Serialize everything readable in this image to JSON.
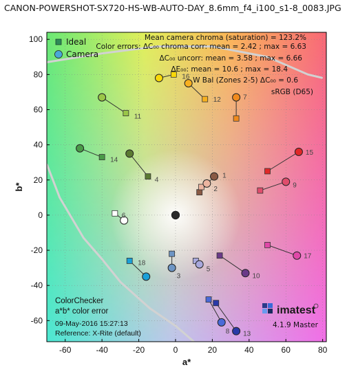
{
  "file_title": "CANON-POWERSHOT-SX720-HS-WB-AUTO-DAY_8.6mm_f4_i100_s1-8_0083.JPG",
  "annotations": {
    "line1": "Mean camera chroma (saturation) = 123.2%",
    "line2": "Color errors:  ΔC₀₀ chroma corr: mean = 2.42 ; max = 6.63",
    "line3": "ΔC₀₀ uncorr: mean = 3.58 ; max = 6.66",
    "line4": "ΔE₀₀: mean = 10.6 ; max = 18.4",
    "line5": "W Bal (Zones 2-5)  ΔC₀₀ = 0.6",
    "line6": "sRGB (D65)"
  },
  "info_box": {
    "line1": "ColorChecker",
    "line2": "a*b* color error",
    "line3": "09-May-2016 15:27:13",
    "line4": "Reference: X-Rite (default)"
  },
  "logo": {
    "text": "imatest",
    "version": "4.1.9 Master"
  },
  "colors": {
    "gamut_line": "#d2d2d2",
    "ideal_legend": "#2e8b57",
    "camera_legend": "#4aa8d8"
  },
  "chart_data": {
    "type": "scatter",
    "xlabel": "a*",
    "ylabel": "b*",
    "xlim": [
      -70,
      82
    ],
    "ylim": [
      -72,
      104
    ],
    "xticks": [
      -60,
      -40,
      -20,
      0,
      20,
      40,
      60,
      80
    ],
    "yticks": [
      -60,
      -40,
      -20,
      0,
      20,
      40,
      60,
      80,
      100
    ],
    "grid": true,
    "legend_position": "top-left",
    "series": [
      {
        "name": "Ideal",
        "marker": "square"
      },
      {
        "name": "Camera",
        "marker": "circle"
      }
    ],
    "patches": [
      {
        "id": "1",
        "ideal": [
          13,
          13
        ],
        "camera": [
          21,
          22
        ],
        "color": "#8a5a44"
      },
      {
        "id": "2",
        "ideal": [
          14,
          16
        ],
        "camera": [
          17,
          18
        ],
        "color": "#ecb5a0"
      },
      {
        "id": "3",
        "ideal": [
          -2,
          -22
        ],
        "camera": [
          -2,
          -30
        ],
        "color": "#6d95c4"
      },
      {
        "id": "4",
        "ideal": [
          -15,
          22
        ],
        "camera": [
          -25,
          35
        ],
        "color": "#5b7a32"
      },
      {
        "id": "5",
        "ideal": [
          11,
          -26
        ],
        "camera": [
          13,
          -28
        ],
        "color": "#a8a8dc"
      },
      {
        "id": "6",
        "ideal": [
          -33,
          1
        ],
        "camera": [
          -28,
          -3
        ],
        "color": "#ffffff"
      },
      {
        "id": "7",
        "ideal": [
          33,
          55
        ],
        "camera": [
          33,
          67
        ],
        "color": "#f08a1e"
      },
      {
        "id": "8",
        "ideal": [
          18,
          -48
        ],
        "camera": [
          25,
          -61
        ],
        "color": "#4a6ad8"
      },
      {
        "id": "9",
        "ideal": [
          46,
          14
        ],
        "camera": [
          60,
          19
        ],
        "color": "#e04d6c"
      },
      {
        "id": "10",
        "ideal": [
          24,
          -23
        ],
        "camera": [
          38,
          -33
        ],
        "color": "#6a3a88"
      },
      {
        "id": "11",
        "ideal": [
          -27,
          58
        ],
        "camera": [
          -40,
          67
        ],
        "color": "#9ac648"
      },
      {
        "id": "12",
        "ideal": [
          16,
          66
        ],
        "camera": [
          7,
          75
        ],
        "color": "#f7b020"
      },
      {
        "id": "13",
        "ideal": [
          22,
          -50
        ],
        "camera": [
          33,
          -66
        ],
        "color": "#2a3aa8"
      },
      {
        "id": "14",
        "ideal": [
          -40,
          33
        ],
        "camera": [
          -52,
          38
        ],
        "color": "#4a9a48"
      },
      {
        "id": "15",
        "ideal": [
          50,
          25
        ],
        "camera": [
          67,
          36
        ],
        "color": "#e02828"
      },
      {
        "id": "16",
        "ideal": [
          -1,
          80
        ],
        "camera": [
          -9,
          78
        ],
        "color": "#f8d808"
      },
      {
        "id": "17",
        "ideal": [
          50,
          -17
        ],
        "camera": [
          66,
          -23
        ],
        "color": "#e048a8"
      },
      {
        "id": "18",
        "ideal": [
          -25,
          -26
        ],
        "camera": [
          -16,
          -35
        ],
        "color": "#1aa0d8"
      },
      {
        "id": "19",
        "ideal": [
          0,
          0
        ],
        "camera": [
          0,
          0
        ],
        "color": "#ffffff"
      },
      {
        "id": "20",
        "ideal": [
          0,
          0
        ],
        "camera": [
          0,
          0
        ],
        "color": "#e6e6e6"
      },
      {
        "id": "21",
        "ideal": [
          0,
          0
        ],
        "camera": [
          0,
          0
        ],
        "color": "#bdbdbd"
      },
      {
        "id": "22",
        "ideal": [
          0,
          0
        ],
        "camera": [
          0,
          0
        ],
        "color": "#8c8c8c"
      },
      {
        "id": "23",
        "ideal": [
          0,
          0
        ],
        "camera": [
          0,
          0
        ],
        "color": "#5a5a5a"
      },
      {
        "id": "24",
        "ideal": [
          0,
          0
        ],
        "camera": [
          0,
          0
        ],
        "color": "#2a2a2a"
      }
    ],
    "gamut_boundary": [
      [
        -70,
        87
      ],
      [
        -40,
        92
      ],
      [
        -10,
        96
      ],
      [
        20,
        96
      ],
      [
        50,
        90
      ],
      [
        72,
        80
      ],
      [
        80,
        78
      ],
      [
        -70,
        29
      ],
      [
        -63,
        10
      ],
      [
        -50,
        -13
      ],
      [
        -40,
        -25
      ],
      [
        -30,
        -38
      ],
      [
        -14,
        -53
      ],
      [
        0,
        -63
      ],
      [
        10,
        -72
      ]
    ]
  }
}
